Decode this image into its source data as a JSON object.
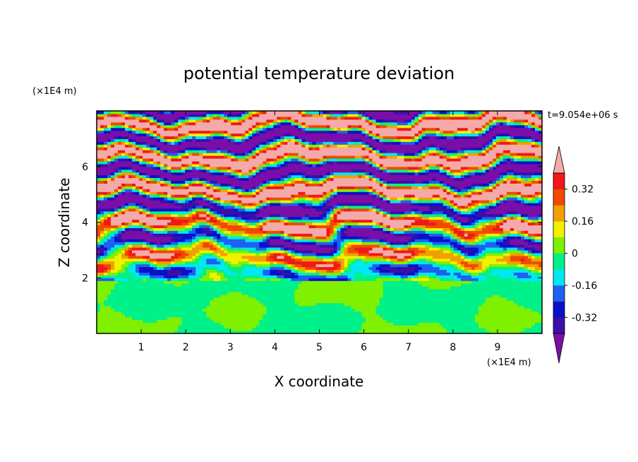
{
  "chart_data": {
    "type": "heatmap",
    "title": "potential temperature deviation",
    "xlabel": "X coordinate",
    "ylabel": "Z coordinate",
    "x_unit": "(×1E4 m)",
    "y_unit": "(×1E4 m)",
    "time_label": "t=9.054e+06 s",
    "xlim": [
      0,
      10
    ],
    "ylim": [
      0,
      8
    ],
    "x_ticks": [
      "1",
      "2",
      "3",
      "4",
      "5",
      "6",
      "7",
      "8",
      "9"
    ],
    "y_ticks": [
      "2",
      "4",
      "6"
    ],
    "colorbar": {
      "levels": [
        -0.4,
        -0.32,
        -0.24,
        -0.16,
        -0.08,
        0,
        0.08,
        0.16,
        0.24,
        0.32,
        0.4
      ],
      "tick_labels": [
        "0.32",
        "0.16",
        "0",
        "-0.16",
        "-0.32"
      ],
      "tick_values": [
        0.32,
        0.16,
        0,
        -0.16,
        -0.32
      ],
      "colors": [
        "#7a0ea8",
        "#3c0fa8",
        "#0a10c8",
        "#1e60f0",
        "#00e8f0",
        "#00f08a",
        "#7ef000",
        "#f0f000",
        "#f0a000",
        "#f04a00",
        "#f01818",
        "#f4aaaa"
      ],
      "extend": "both"
    },
    "layers": [
      {
        "z_range": [
          0,
          2
        ],
        "description": "near-zero values",
        "dominant": [
          0,
          0.08
        ]
      },
      {
        "z_range": [
          2,
          4.5
        ],
        "description": "mixed layered values",
        "dominant": [
          -0.4,
          0.4
        ]
      },
      {
        "z_range": [
          4.5,
          8
        ],
        "description": "alternating bands",
        "dominant": [
          -0.4,
          0.4
        ]
      }
    ]
  }
}
